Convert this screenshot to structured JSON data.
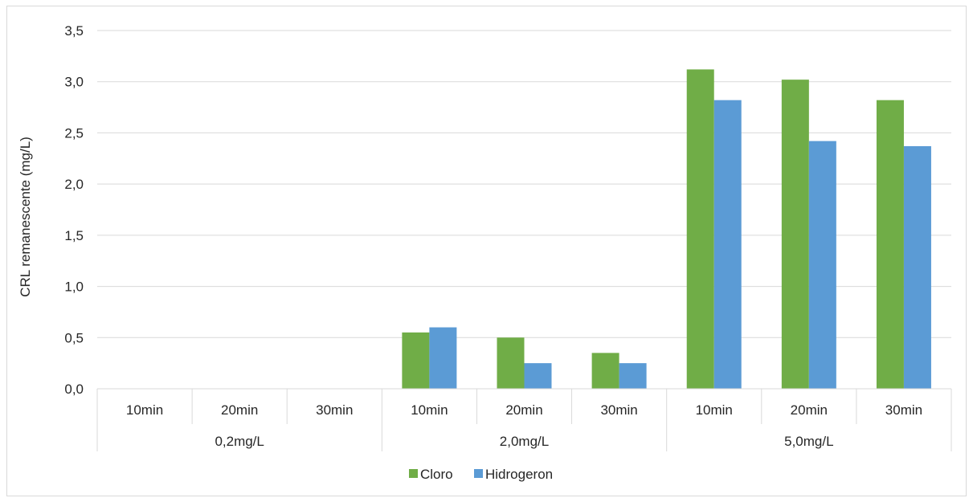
{
  "chart_data": {
    "type": "bar",
    "ylabel": "CRL remanescente (mg/L)",
    "xlabel": "",
    "ylim": [
      0,
      3.5
    ],
    "yticks": [
      "0,0",
      "0,5",
      "1,0",
      "1,5",
      "2,0",
      "2,5",
      "3,0",
      "3,5"
    ],
    "ytick_values": [
      0,
      0.5,
      1.0,
      1.5,
      2.0,
      2.5,
      3.0,
      3.5
    ],
    "grid": true,
    "legend_position": "bottom",
    "groups": [
      {
        "label": "0,2mg/L",
        "categories": [
          "10min",
          "20min",
          "30min"
        ]
      },
      {
        "label": "2,0mg/L",
        "categories": [
          "10min",
          "20min",
          "30min"
        ]
      },
      {
        "label": "5,0mg/L",
        "categories": [
          "10min",
          "20min",
          "30min"
        ]
      }
    ],
    "series": [
      {
        "name": "Cloro",
        "color": "#70ad47",
        "values": [
          0,
          0,
          0,
          0.55,
          0.5,
          0.35,
          3.12,
          3.02,
          2.82
        ]
      },
      {
        "name": "Hidrogeron",
        "color": "#5b9bd5",
        "values": [
          0,
          0,
          0,
          0.6,
          0.25,
          0.25,
          2.82,
          2.42,
          2.37
        ]
      }
    ]
  }
}
